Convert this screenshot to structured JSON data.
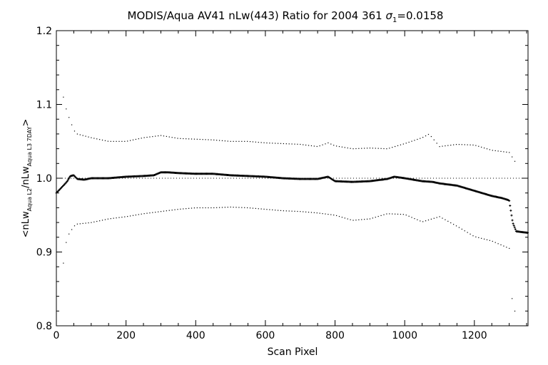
{
  "chart_data": {
    "type": "scatter",
    "title_parts": {
      "prefix": "MODIS/Aqua AV41 nLw(443) Ratio for 2004 361 ",
      "sigma": "σ",
      "sigma_sub": "1",
      "suffix": "=0.0158"
    },
    "xlabel": "Scan Pixel",
    "ylabel_parts": {
      "open": "<nLw",
      "sub1": "Aqua L2",
      "mid": "/nLw",
      "sub2": "Aqua L3 7DAY",
      "close": ">"
    },
    "xlim": [
      0,
      1354
    ],
    "ylim": [
      0.8,
      1.2
    ],
    "xticks": [
      0,
      200,
      400,
      600,
      800,
      1000,
      1200
    ],
    "xtick_labels": [
      "0",
      "200",
      "400",
      "600",
      "800",
      "1000",
      "1200"
    ],
    "yticks": [
      0.8,
      0.9,
      1.0,
      1.1,
      1.2
    ],
    "ytick_labels": [
      "0.8",
      "0.9",
      "1.0",
      "1.1",
      "1.2"
    ],
    "reference_line": 1.0,
    "series": [
      {
        "role": "mean",
        "x": [
          0,
          10,
          20,
          30,
          40,
          50,
          60,
          80,
          100,
          150,
          200,
          250,
          280,
          300,
          320,
          350,
          400,
          450,
          500,
          550,
          600,
          650,
          700,
          750,
          780,
          800,
          850,
          900,
          950,
          970,
          1000,
          1050,
          1080,
          1100,
          1150,
          1200,
          1250,
          1280,
          1300,
          1310,
          1320,
          1354
        ],
        "y": [
          0.98,
          0.985,
          0.99,
          0.995,
          1.003,
          1.004,
          0.999,
          0.998,
          1.0,
          1.0,
          1.002,
          1.003,
          1.004,
          1.008,
          1.008,
          1.007,
          1.006,
          1.006,
          1.004,
          1.003,
          1.002,
          1.0,
          0.999,
          0.999,
          1.002,
          0.996,
          0.995,
          0.996,
          0.999,
          1.002,
          1.0,
          0.996,
          0.995,
          0.993,
          0.99,
          0.983,
          0.976,
          0.973,
          0.97,
          0.94,
          0.928,
          0.926
        ]
      },
      {
        "role": "upper",
        "x": [
          20,
          30,
          50,
          60,
          100,
          150,
          200,
          250,
          300,
          350,
          400,
          450,
          500,
          550,
          600,
          650,
          700,
          750,
          780,
          800,
          850,
          900,
          950,
          1000,
          1050,
          1070,
          1100,
          1150,
          1200,
          1250,
          1300,
          1320
        ],
        "y": [
          1.11,
          1.09,
          1.065,
          1.06,
          1.055,
          1.05,
          1.05,
          1.055,
          1.058,
          1.054,
          1.053,
          1.052,
          1.05,
          1.05,
          1.048,
          1.047,
          1.046,
          1.043,
          1.048,
          1.044,
          1.04,
          1.041,
          1.04,
          1.047,
          1.055,
          1.06,
          1.043,
          1.046,
          1.045,
          1.038,
          1.035,
          1.02
        ]
      },
      {
        "role": "lower",
        "x": [
          20,
          30,
          50,
          60,
          100,
          150,
          200,
          250,
          300,
          350,
          400,
          450,
          500,
          550,
          600,
          650,
          700,
          750,
          800,
          850,
          900,
          950,
          1000,
          1050,
          1100,
          1150,
          1200,
          1250,
          1300,
          1310,
          1320
        ],
        "y": [
          0.885,
          0.92,
          0.935,
          0.938,
          0.94,
          0.945,
          0.948,
          0.952,
          0.955,
          0.958,
          0.96,
          0.96,
          0.961,
          0.96,
          0.958,
          0.956,
          0.955,
          0.953,
          0.95,
          0.943,
          0.945,
          0.952,
          0.951,
          0.941,
          0.948,
          0.935,
          0.921,
          0.915,
          0.905,
          0.82,
          0.82
        ]
      }
    ]
  }
}
